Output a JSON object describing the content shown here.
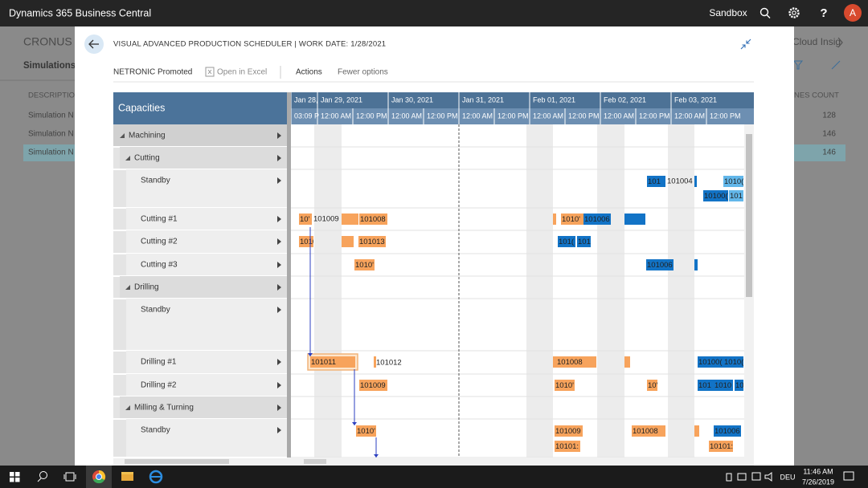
{
  "app_bar": {
    "title": "Dynamics 365 Business Central",
    "environment": "Sandbox",
    "help_icon": "?",
    "avatar": "A"
  },
  "background": {
    "company": "CRONUS I",
    "page": "Simulations:",
    "column": "DESCRIPTION",
    "rows": [
      "Simulation N",
      "Simulation N",
      "Simulation N"
    ],
    "right_title": "Cloud Insig",
    "right_column": "NES COUNT",
    "counts": [
      128,
      146,
      146
    ]
  },
  "dialog": {
    "title": "VISUAL ADVANCED PRODUCTION SCHEDULER | WORK DATE: 1/28/2021",
    "actions": [
      "NETRONIC Promoted",
      "Open in Excel",
      "Actions",
      "Fewer options"
    ]
  },
  "scheduler": {
    "header": "Capacities",
    "dates": [
      "Jan 28,",
      "Jan 29, 2021",
      "Jan 30, 2021",
      "Jan 31, 2021",
      "Feb 01, 2021",
      "Feb 02, 2021",
      "Feb 03, 2021"
    ],
    "times": [
      "03:09 P",
      "12:00 AM",
      "12:00 PM",
      "12:00 AM",
      "12:00 PM",
      "12:00 AM",
      "12:00 PM",
      "12:00 AM",
      "12:00 PM",
      "12:00 AM",
      "12:00 PM",
      "12:00 AM",
      "12:00 PM"
    ],
    "rows": [
      {
        "label": "Machining",
        "level": 0
      },
      {
        "label": "Cutting",
        "level": 1
      },
      {
        "label": "Standby",
        "level": 2
      },
      {
        "label": "Cutting #1",
        "level": 2
      },
      {
        "label": "Cutting #2",
        "level": 2
      },
      {
        "label": "Cutting #3",
        "level": 2
      },
      {
        "label": "Drilling",
        "level": 1
      },
      {
        "label": "Standby",
        "level": 2
      },
      {
        "label": "Drilling #1",
        "level": 2
      },
      {
        "label": "Drilling #2",
        "level": 2
      },
      {
        "label": "Milling & Turning",
        "level": 1
      },
      {
        "label": "Standby",
        "level": 2
      }
    ],
    "bar_labels": [
      "10'",
      "101008",
      "1010'",
      "101006",
      "101",
      "1010(",
      "10100(",
      "101",
      "101012",
      "101013",
      "101(",
      "101",
      "1010'",
      "101006",
      "101011",
      "101008",
      "10100(",
      "1010(",
      "101009",
      "1010'",
      "10'",
      "101",
      "1010",
      "10",
      "1010'",
      "101009",
      "101008",
      "101006",
      "10101:",
      "10101:"
    ],
    "outside_labels": [
      "101009",
      "101004",
      "101012"
    ]
  },
  "taskbar": {
    "time": "11:46 AM",
    "date": "7/26/2019",
    "language": "DEU"
  }
}
